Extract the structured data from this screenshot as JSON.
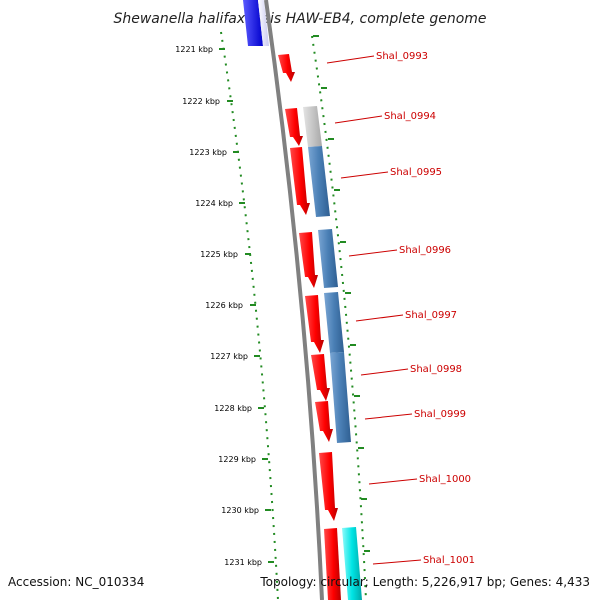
{
  "title": "Shewanella halifaxensis HAW-EB4, complete genome",
  "footer": {
    "accession": "Accession: NC_010334",
    "summary": "Topology: circular; Length: 5,226,917 bp; Genes: 4,433"
  },
  "kbp_labels": [
    "1221 kbp",
    "1222 kbp",
    "1223 kbp",
    "1224 kbp",
    "1225 kbp",
    "1226 kbp",
    "1227 kbp",
    "1228 kbp",
    "1229 kbp",
    "1230 kbp",
    "1231 kbp"
  ],
  "gene_labels": [
    "Shal_0993",
    "Shal_0994",
    "Shal_0995",
    "Shal_0996",
    "Shal_0997",
    "Shal_0998",
    "Shal_0999",
    "Shal_1000",
    "Shal_1001"
  ],
  "colors": {
    "cds": "#ff0000",
    "blast": "#4a7fb5",
    "blast_light": "#c8c8c8",
    "blue_feature": "#0000ee",
    "cyan_feature": "#00e5e5",
    "backbone": "#808080",
    "tick": "#228b22",
    "label": "#cc0000"
  }
}
